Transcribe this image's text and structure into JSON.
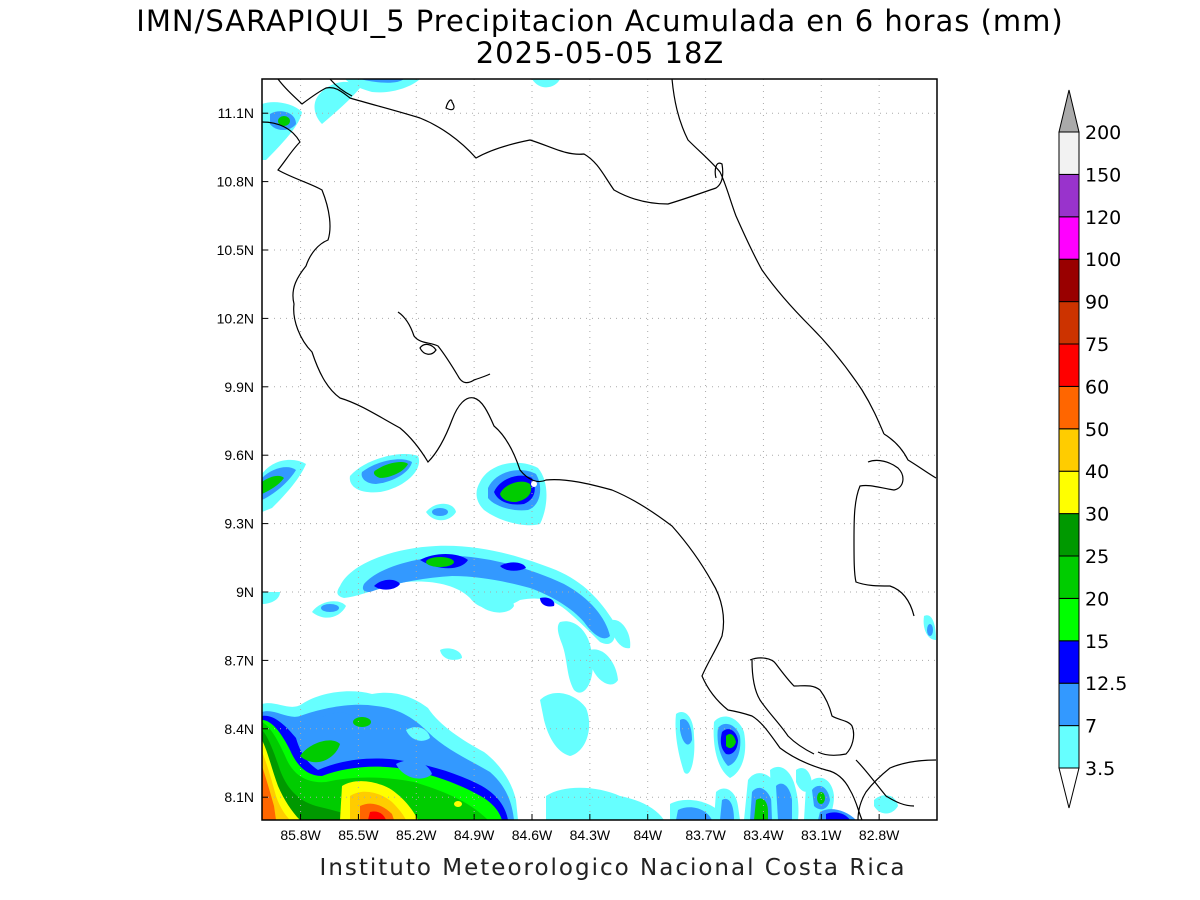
{
  "header": {
    "title": "IMN/SARAPIQUI_5 Precipitacion Acumulada en 6 horas (mm)",
    "subtitle": "2025-05-05 18Z"
  },
  "footer": {
    "credit": "Instituto Meteorologico Nacional Costa Rica"
  },
  "map": {
    "lon_range": [
      -86.0,
      -82.5
    ],
    "lat_range": [
      8.0,
      11.25
    ],
    "grid": true,
    "lon_ticks": [
      {
        "value": -85.8,
        "label": "85.8W"
      },
      {
        "value": -85.5,
        "label": "85.5W"
      },
      {
        "value": -85.2,
        "label": "85.2W"
      },
      {
        "value": -84.9,
        "label": "84.9W"
      },
      {
        "value": -84.6,
        "label": "84.6W"
      },
      {
        "value": -84.3,
        "label": "84.3W"
      },
      {
        "value": -84.0,
        "label": "84W"
      },
      {
        "value": -83.7,
        "label": "83.7W"
      },
      {
        "value": -83.4,
        "label": "83.4W"
      },
      {
        "value": -83.1,
        "label": "83.1W"
      },
      {
        "value": -82.8,
        "label": "82.8W"
      }
    ],
    "lat_ticks": [
      {
        "value": 8.1,
        "label": "8.1N"
      },
      {
        "value": 8.4,
        "label": "8.4N"
      },
      {
        "value": 8.7,
        "label": "8.7N"
      },
      {
        "value": 9.0,
        "label": "9N"
      },
      {
        "value": 9.3,
        "label": "9.3N"
      },
      {
        "value": 9.6,
        "label": "9.6N"
      },
      {
        "value": 9.9,
        "label": "9.9N"
      },
      {
        "value": 10.2,
        "label": "10.2N"
      },
      {
        "value": 10.5,
        "label": "10.5N"
      },
      {
        "value": 10.8,
        "label": "10.8N"
      },
      {
        "value": 11.1,
        "label": "11.1N"
      }
    ]
  },
  "colorbar": {
    "levels": [
      "3.5",
      "7",
      "12.5",
      "15",
      "20",
      "25",
      "30",
      "40",
      "50",
      "60",
      "75",
      "90",
      "100",
      "120",
      "150",
      "200"
    ],
    "colors": [
      "#ffffff",
      "#66ffff",
      "#3399ff",
      "#0000ff",
      "#00ff00",
      "#00cc00",
      "#009900",
      "#ffff00",
      "#ffcc00",
      "#ff6600",
      "#ff0000",
      "#cc3300",
      "#990000",
      "#ff00ff",
      "#9933cc",
      "#f2f2f2",
      "#aaaaaa"
    ]
  }
}
